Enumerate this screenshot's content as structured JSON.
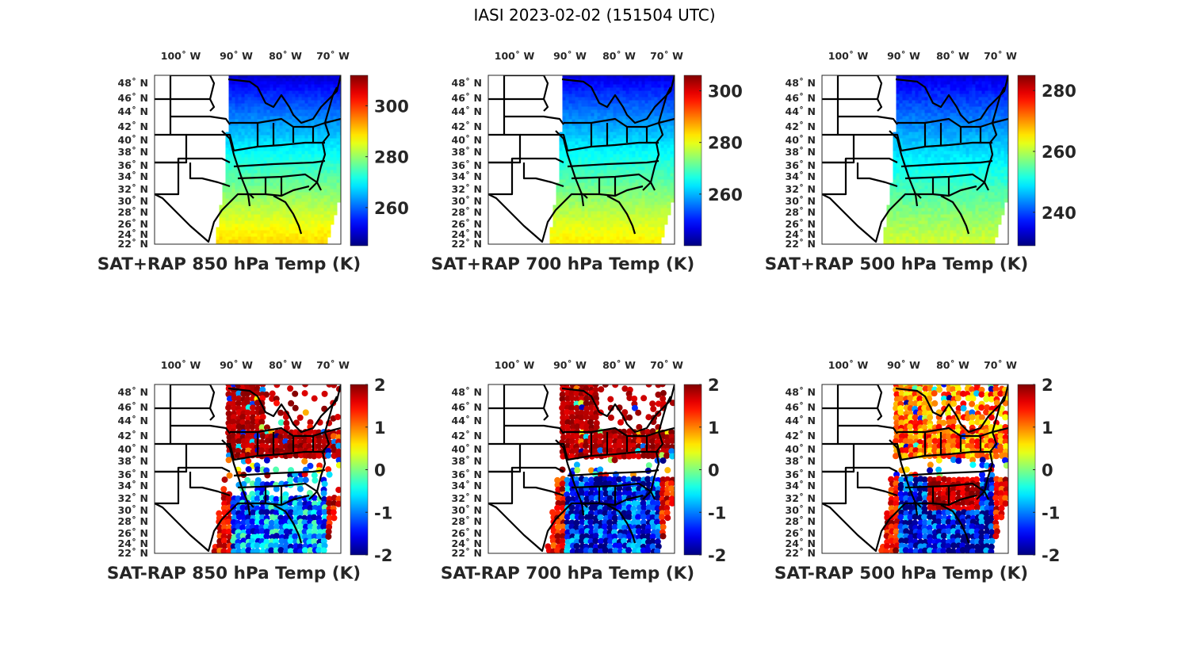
{
  "figure_title": "IASI 2023-02-02 (151504 UTC)",
  "chart_data": [
    {
      "type": "heatmap",
      "title": "SAT+RAP 850 hPa Temp (K)",
      "variable": "combined",
      "level_hPa": 850,
      "xlabel": "",
      "ylabel": "",
      "lon_ticks": [
        "100° W",
        "90° W",
        "80° W",
        "70° W"
      ],
      "lat_ticks": [
        "48° N",
        "46° N",
        "44° N",
        "42° N",
        "40° N",
        "38° N",
        "36° N",
        "34° N",
        "32° N",
        "30° N",
        "28° N",
        "26° N",
        "24° N",
        "22° N"
      ],
      "colorbar": {
        "colormap": "jet",
        "range": [
          245,
          312
        ],
        "ticks": [
          260,
          280,
          300
        ]
      },
      "field_description": "cold (~250 K) in north, warm (~290 K) in south",
      "north_value": 250,
      "south_value": 290
    },
    {
      "type": "heatmap",
      "title": "SAT+RAP 700 hPa Temp (K)",
      "variable": "combined",
      "level_hPa": 700,
      "lon_ticks": [
        "100° W",
        "90° W",
        "80° W",
        "70° W"
      ],
      "lat_ticks": [
        "48° N",
        "46° N",
        "44° N",
        "42° N",
        "40° N",
        "38° N",
        "36° N",
        "34° N",
        "32° N",
        "30° N",
        "28° N",
        "26° N",
        "24° N",
        "22° N"
      ],
      "colorbar": {
        "colormap": "jet",
        "range": [
          240,
          306
        ],
        "ticks": [
          260,
          280,
          300
        ]
      },
      "north_value": 246,
      "south_value": 283
    },
    {
      "type": "heatmap",
      "title": "SAT+RAP 500 hPa Temp (K)",
      "variable": "combined",
      "level_hPa": 500,
      "lon_ticks": [
        "100° W",
        "90° W",
        "80° W",
        "70° W"
      ],
      "lat_ticks": [
        "48° N",
        "46° N",
        "44° N",
        "42° N",
        "40° N",
        "38° N",
        "36° N",
        "34° N",
        "32° N",
        "30° N",
        "28° N",
        "26° N",
        "24° N",
        "22° N"
      ],
      "colorbar": {
        "colormap": "jet",
        "range": [
          229,
          285
        ],
        "ticks": [
          240,
          260,
          280
        ]
      },
      "north_value": 234,
      "south_value": 262
    },
    {
      "type": "heatmap",
      "title": "SAT-RAP 850 hPa Temp (K)",
      "variable": "difference",
      "level_hPa": 850,
      "lon_ticks": [
        "100° W",
        "90° W",
        "80° W",
        "70° W"
      ],
      "lat_ticks": [
        "48° N",
        "46° N",
        "44° N",
        "42° N",
        "40° N",
        "38° N",
        "36° N",
        "34° N",
        "32° N",
        "30° N",
        "28° N",
        "26° N",
        "24° N",
        "22° N"
      ],
      "colorbar": {
        "colormap": "jet",
        "range": [
          -2,
          2
        ],
        "ticks": [
          -2,
          -1,
          0,
          1,
          2
        ]
      },
      "regions": {
        "north_band": 2,
        "south": -1
      }
    },
    {
      "type": "heatmap",
      "title": "SAT-RAP 700 hPa Temp (K)",
      "variable": "difference",
      "level_hPa": 700,
      "lon_ticks": [
        "100° W",
        "90° W",
        "80° W",
        "70° W"
      ],
      "lat_ticks": [
        "48° N",
        "46° N",
        "44° N",
        "42° N",
        "40° N",
        "38° N",
        "36° N",
        "34° N",
        "32° N",
        "30° N",
        "28° N",
        "26° N",
        "24° N",
        "22° N"
      ],
      "colorbar": {
        "colormap": "jet",
        "range": [
          -2,
          2
        ],
        "ticks": [
          -2,
          -1,
          0,
          1,
          2
        ]
      },
      "regions": {
        "north_band": 2,
        "south": -1.5
      }
    },
    {
      "type": "heatmap",
      "title": "SAT-RAP 500 hPa Temp (K)",
      "variable": "difference",
      "level_hPa": 500,
      "lon_ticks": [
        "100° W",
        "90° W",
        "80° W",
        "70° W"
      ],
      "lat_ticks": [
        "48° N",
        "46° N",
        "44° N",
        "42° N",
        "40° N",
        "38° N",
        "36° N",
        "34° N",
        "32° N",
        "30° N",
        "28° N",
        "26° N",
        "24° N",
        "22° N"
      ],
      "colorbar": {
        "colormap": "jet",
        "range": [
          -2,
          2
        ],
        "ticks": [
          -2,
          -1,
          0,
          1,
          2
        ]
      },
      "regions": {
        "north_band": 1.6,
        "south": -1.6
      }
    }
  ]
}
